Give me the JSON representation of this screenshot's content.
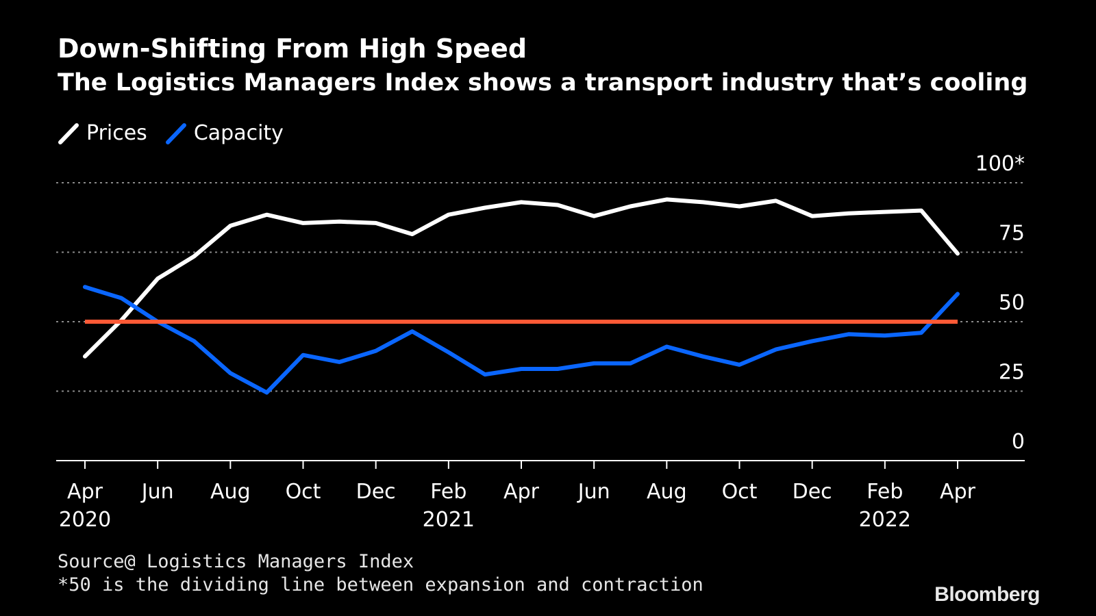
{
  "colors": {
    "background": "#000000",
    "text": "#ffffff",
    "prices": "#ffffff",
    "capacity": "#0a66ff",
    "threshold": "#ff5a36",
    "grid": "#8a8a8a",
    "axis": "#ffffff"
  },
  "chart_data": {
    "type": "line",
    "title": "Down-Shifting From High Speed",
    "subtitle": "The Logistics Managers Index shows a transport industry that’s cooling",
    "xlabel": "",
    "ylabel": "",
    "ylim": [
      0,
      100
    ],
    "grid": true,
    "legend_position": "top-left",
    "y_ticks": [
      {
        "value": 100,
        "label": "100*"
      },
      {
        "value": 75,
        "label": "75"
      },
      {
        "value": 50,
        "label": "50"
      },
      {
        "value": 25,
        "label": "25"
      },
      {
        "value": 0,
        "label": "0"
      }
    ],
    "x": [
      "Apr 2020",
      "May 2020",
      "Jun 2020",
      "Jul 2020",
      "Aug 2020",
      "Sep 2020",
      "Oct 2020",
      "Nov 2020",
      "Dec 2020",
      "Jan 2021",
      "Feb 2021",
      "Mar 2021",
      "Apr 2021",
      "May 2021",
      "Jun 2021",
      "Jul 2021",
      "Aug 2021",
      "Sep 2021",
      "Oct 2021",
      "Nov 2021",
      "Dec 2021",
      "Jan 2022",
      "Feb 2022",
      "Mar 2022",
      "Apr 2022"
    ],
    "x_ticks": [
      {
        "index": 0,
        "label": "Apr",
        "year": "2020"
      },
      {
        "index": 2,
        "label": "Jun",
        "year": ""
      },
      {
        "index": 4,
        "label": "Aug",
        "year": ""
      },
      {
        "index": 6,
        "label": "Oct",
        "year": ""
      },
      {
        "index": 8,
        "label": "Dec",
        "year": ""
      },
      {
        "index": 10,
        "label": "Feb",
        "year": "2021"
      },
      {
        "index": 12,
        "label": "Apr",
        "year": ""
      },
      {
        "index": 14,
        "label": "Jun",
        "year": ""
      },
      {
        "index": 16,
        "label": "Aug",
        "year": ""
      },
      {
        "index": 18,
        "label": "Oct",
        "year": ""
      },
      {
        "index": 20,
        "label": "Dec",
        "year": ""
      },
      {
        "index": 22,
        "label": "Feb",
        "year": "2022"
      },
      {
        "index": 24,
        "label": "Apr",
        "year": ""
      }
    ],
    "series": [
      {
        "name": "Prices",
        "color": "#ffffff",
        "values": [
          37.5,
          50.5,
          65.5,
          73.5,
          84.5,
          88.5,
          85.5,
          86,
          85.5,
          81.5,
          88.5,
          91,
          93,
          92,
          88,
          91.5,
          94,
          93,
          91.5,
          93.5,
          88,
          89,
          89.5,
          90,
          74.5
        ]
      },
      {
        "name": "Capacity",
        "color": "#0a66ff",
        "values": [
          62.5,
          58.5,
          50,
          43,
          31.5,
          24.5,
          38,
          35.5,
          39.5,
          46.5,
          39,
          31,
          33,
          33,
          35,
          35,
          41,
          37.5,
          34.5,
          40,
          43,
          45.5,
          45,
          46,
          60
        ]
      }
    ],
    "reference_lines": [
      {
        "name": "Expansion/contraction threshold",
        "value": 50,
        "color": "#ff5a36"
      }
    ]
  },
  "legend": {
    "items": [
      {
        "label": "Prices",
        "color": "#ffffff"
      },
      {
        "label": "Capacity",
        "color": "#0a66ff"
      }
    ]
  },
  "footer": {
    "source": "Source@ Logistics Managers Index",
    "note": "*50 is the dividing line between expansion and contraction"
  },
  "brand": "Bloomberg"
}
